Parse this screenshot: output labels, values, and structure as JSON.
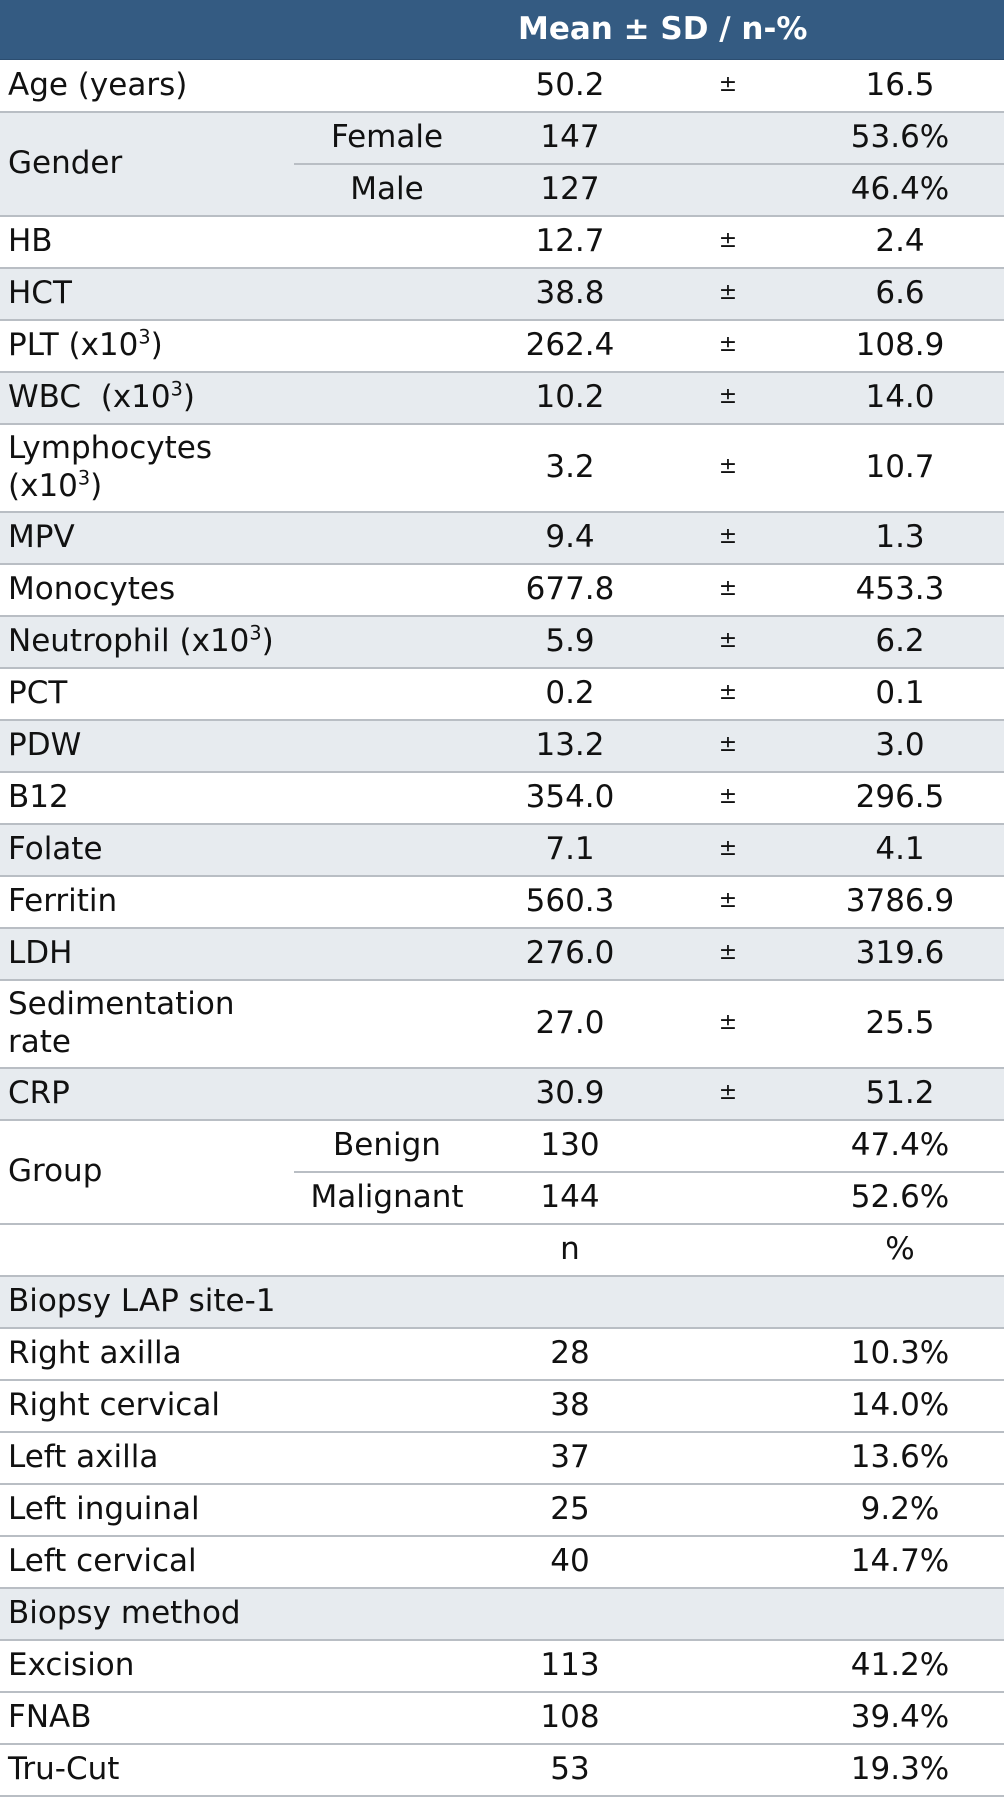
{
  "header": {
    "title": "Mean ± SD / n-%"
  },
  "rows": {
    "age": {
      "label": "Age (years)",
      "mean": "50.2",
      "pm": "±",
      "sd": "16.5"
    },
    "gender": {
      "label": "Gender",
      "female": {
        "sub": "Female",
        "n": "147",
        "pct": "53.6%"
      },
      "male": {
        "sub": "Male",
        "n": "127",
        "pct": "46.4%"
      }
    },
    "hb": {
      "label": "HB",
      "mean": "12.7",
      "pm": "±",
      "sd": "2.4"
    },
    "hct": {
      "label": "HCT",
      "mean": "38.8",
      "pm": "±",
      "sd": "6.6"
    },
    "plt": {
      "label": "PLT (x10",
      "sup": "3",
      "label_end": ")",
      "mean": "262.4",
      "pm": "±",
      "sd": "108.9"
    },
    "wbc": {
      "label": "WBC  (x10",
      "sup": "3",
      "label_end": ")",
      "mean": "10.2",
      "pm": "±",
      "sd": "14.0"
    },
    "lymph": {
      "label_line1": "Lymphocytes",
      "label_line2": "(x10",
      "sup": "3",
      "label_end": ")",
      "mean": "3.2",
      "pm": "±",
      "sd": "10.7"
    },
    "mpv": {
      "label": "MPV",
      "mean": "9.4",
      "pm": "±",
      "sd": "1.3"
    },
    "mono": {
      "label": "Monocytes",
      "mean": "677.8",
      "pm": "±",
      "sd": "453.3"
    },
    "neut": {
      "label": "Neutrophil (x10",
      "sup": "3",
      "label_end": ")",
      "mean": "5.9",
      "pm": "±",
      "sd": "6.2"
    },
    "pct": {
      "label": "PCT",
      "mean": "0.2",
      "pm": "±",
      "sd": "0.1"
    },
    "pdw": {
      "label": "PDW",
      "mean": "13.2",
      "pm": "±",
      "sd": "3.0"
    },
    "b12": {
      "label": "B12",
      "mean": "354.0",
      "pm": "±",
      "sd": "296.5"
    },
    "folate": {
      "label": "Folate",
      "mean": "7.1",
      "pm": "±",
      "sd": "4.1"
    },
    "ferritin": {
      "label": "Ferritin",
      "mean": "560.3",
      "pm": "±",
      "sd": "3786.9"
    },
    "ldh": {
      "label": "LDH",
      "mean": "276.0",
      "pm": "±",
      "sd": "319.6"
    },
    "sed": {
      "label_line1": "Sedimentation",
      "label_line2": "rate",
      "mean": "27.0",
      "pm": "±",
      "sd": "25.5"
    },
    "crp": {
      "label": "CRP",
      "mean": "30.9",
      "pm": "±",
      "sd": "51.2"
    },
    "group": {
      "label": "Group",
      "benign": {
        "sub": "Benign",
        "n": "130",
        "pct": "47.4%"
      },
      "malignant": {
        "sub": "Malignant",
        "n": "144",
        "pct": "52.6%"
      }
    },
    "n_header": {
      "n": "n",
      "pct": "%"
    },
    "biopsy_site": {
      "title": "Biopsy LAP site-1",
      "items": [
        {
          "label": "Right axilla",
          "n": "28",
          "pct": "10.3%"
        },
        {
          "label": "Right cervical",
          "n": "38",
          "pct": "14.0%"
        },
        {
          "label": "Left axilla",
          "n": "37",
          "pct": "13.6%"
        },
        {
          "label": "Left inguinal",
          "n": "25",
          "pct": "9.2%"
        },
        {
          "label": "Left cervical",
          "n": "40",
          "pct": "14.7%"
        }
      ]
    },
    "biopsy_method": {
      "title": "Biopsy method",
      "items": [
        {
          "label": "Excision",
          "n": "113",
          "pct": "41.2%"
        },
        {
          "label": "FNAB",
          "n": "108",
          "pct": "39.4%"
        },
        {
          "label": "Tru-Cut",
          "n": "53",
          "pct": "19.3%"
        }
      ]
    }
  }
}
